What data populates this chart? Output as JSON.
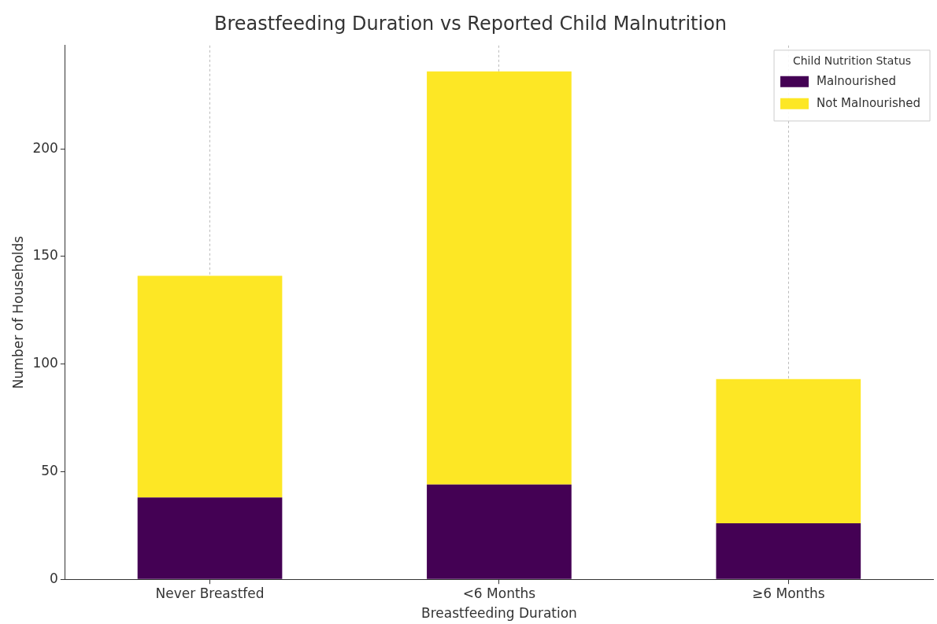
{
  "chart_data": {
    "type": "bar",
    "title": "Breastfeeding Duration vs Reported Child Malnutrition",
    "xlabel": "Breastfeeding Duration",
    "ylabel": "Number of Households",
    "legend_title": "Child Nutrition Status",
    "categories": [
      "Never Breastfed",
      "<6 Months",
      "≥6 Months"
    ],
    "series": [
      {
        "name": "Malnourished",
        "color": "#440154",
        "values": [
          38,
          44,
          26
        ]
      },
      {
        "name": "Not Malnourished",
        "color": "#fde725",
        "values": [
          103,
          192,
          67
        ]
      }
    ],
    "stacked": true,
    "ylim": [
      0,
      248
    ],
    "yticks": [
      0,
      50,
      100,
      150,
      200
    ],
    "grid": "x",
    "legend": "top right"
  }
}
